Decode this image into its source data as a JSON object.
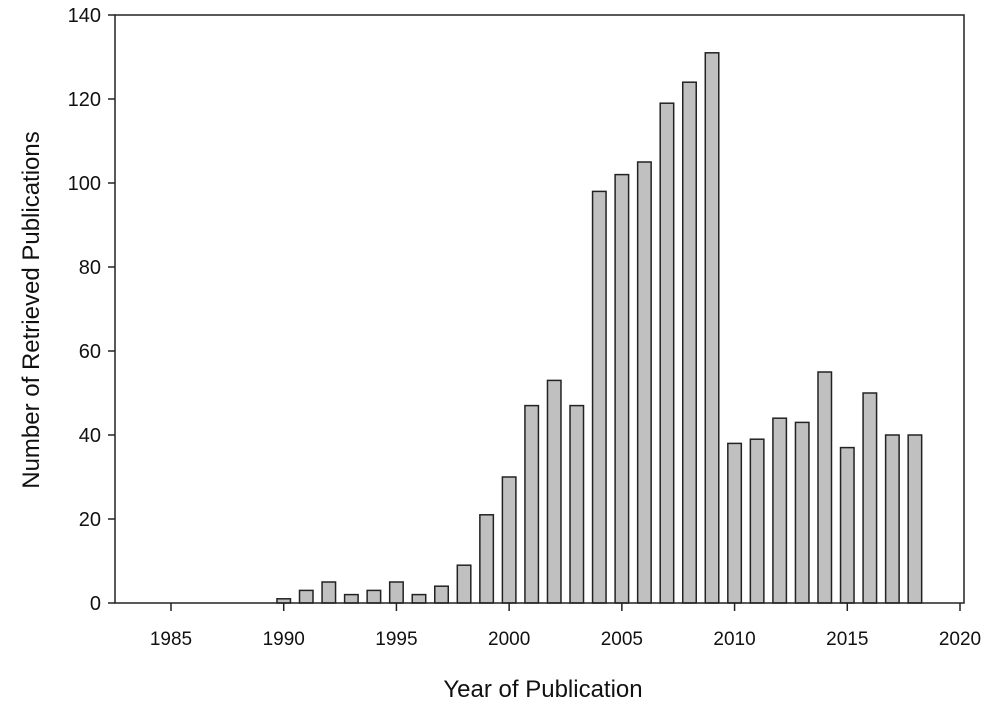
{
  "chart_data": {
    "type": "bar",
    "title": "",
    "xlabel": "Year of Publication",
    "ylabel": "Number of Retrieved Publications",
    "xlim": [
      1982.5,
      2020.2
    ],
    "ylim": [
      0,
      140
    ],
    "x_ticks": [
      1985,
      1990,
      1995,
      2000,
      2005,
      2010,
      2015,
      2020
    ],
    "y_ticks": [
      0,
      20,
      40,
      60,
      80,
      100,
      120,
      140
    ],
    "grid": false,
    "legend": null,
    "bar_color": "#c0c0c0",
    "bar_edge_color": "#222222",
    "categories": [
      1990,
      1991,
      1992,
      1993,
      1994,
      1995,
      1996,
      1997,
      1998,
      1999,
      2000,
      2001,
      2002,
      2003,
      2004,
      2005,
      2006,
      2007,
      2008,
      2009,
      2010,
      2011,
      2012,
      2013,
      2014,
      2015,
      2016,
      2017,
      2018
    ],
    "values": [
      1,
      3,
      5,
      2,
      3,
      5,
      2,
      4,
      9,
      21,
      30,
      47,
      53,
      47,
      98,
      102,
      105,
      119,
      124,
      131,
      38,
      39,
      44,
      43,
      55,
      37,
      50,
      40,
      40
    ]
  }
}
